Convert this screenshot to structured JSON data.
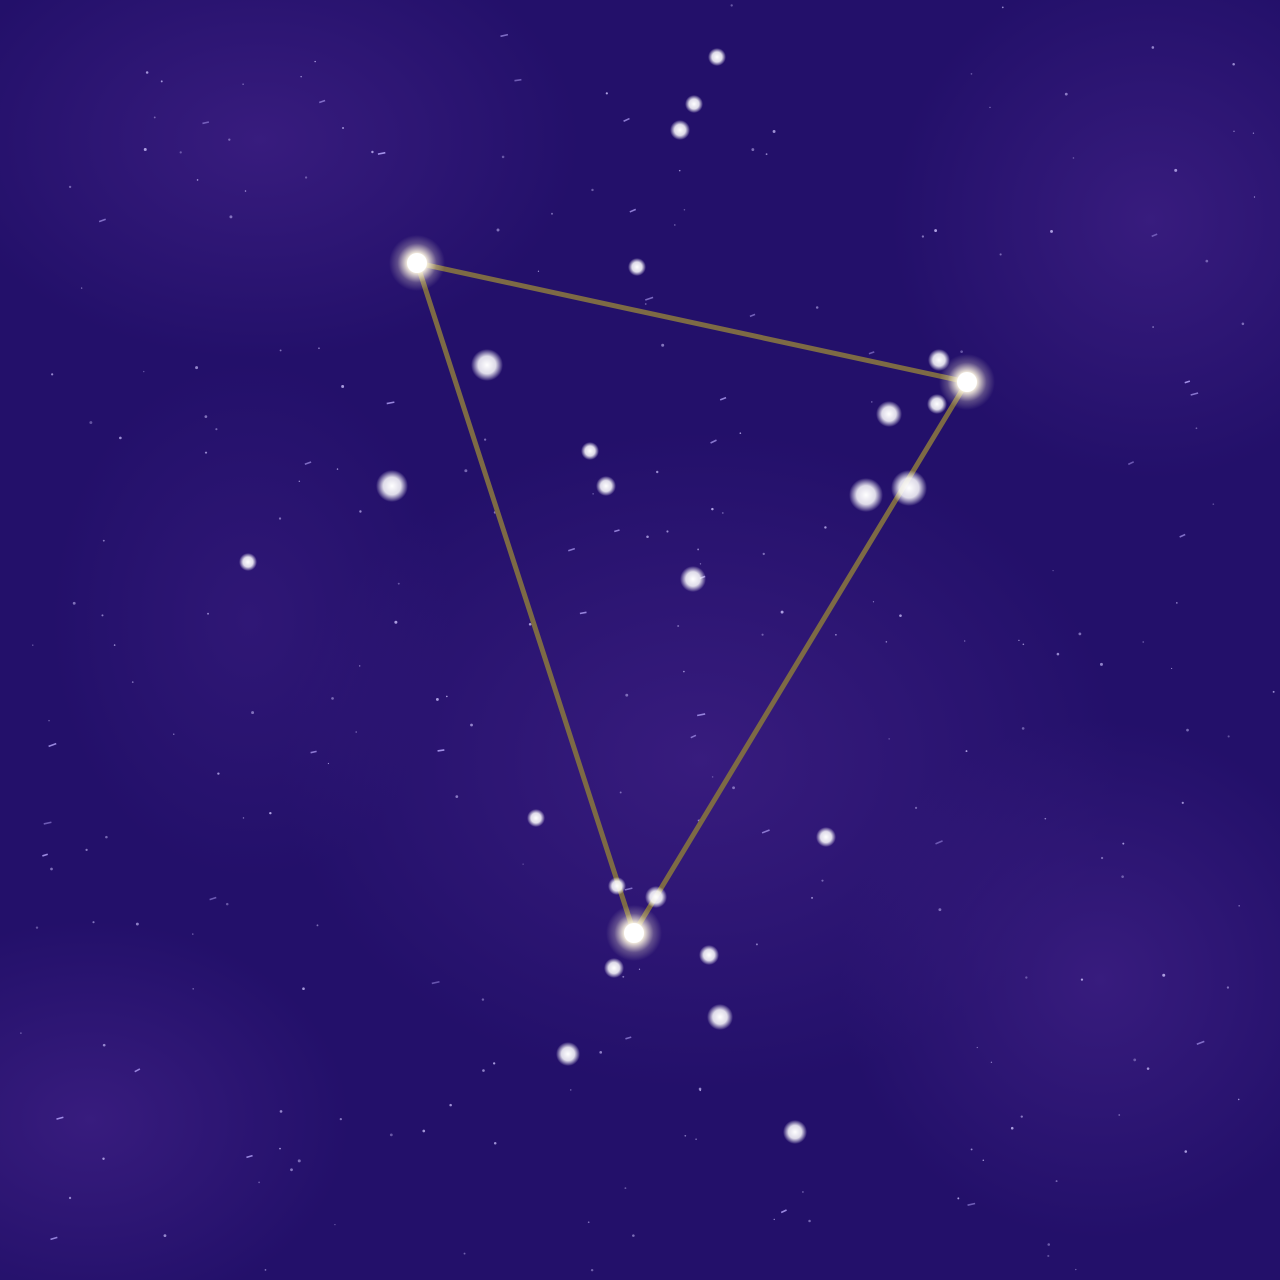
{
  "scene": {
    "background_colors": [
      "#1e0b66",
      "#2c1475",
      "#35197a"
    ],
    "line_color": "#7d6a45",
    "star_color": "#ffffff",
    "glow_color": "#fff6d8"
  },
  "constellation": {
    "shape": "triangle",
    "vertex_count": 3,
    "line_segment_count": 3
  }
}
